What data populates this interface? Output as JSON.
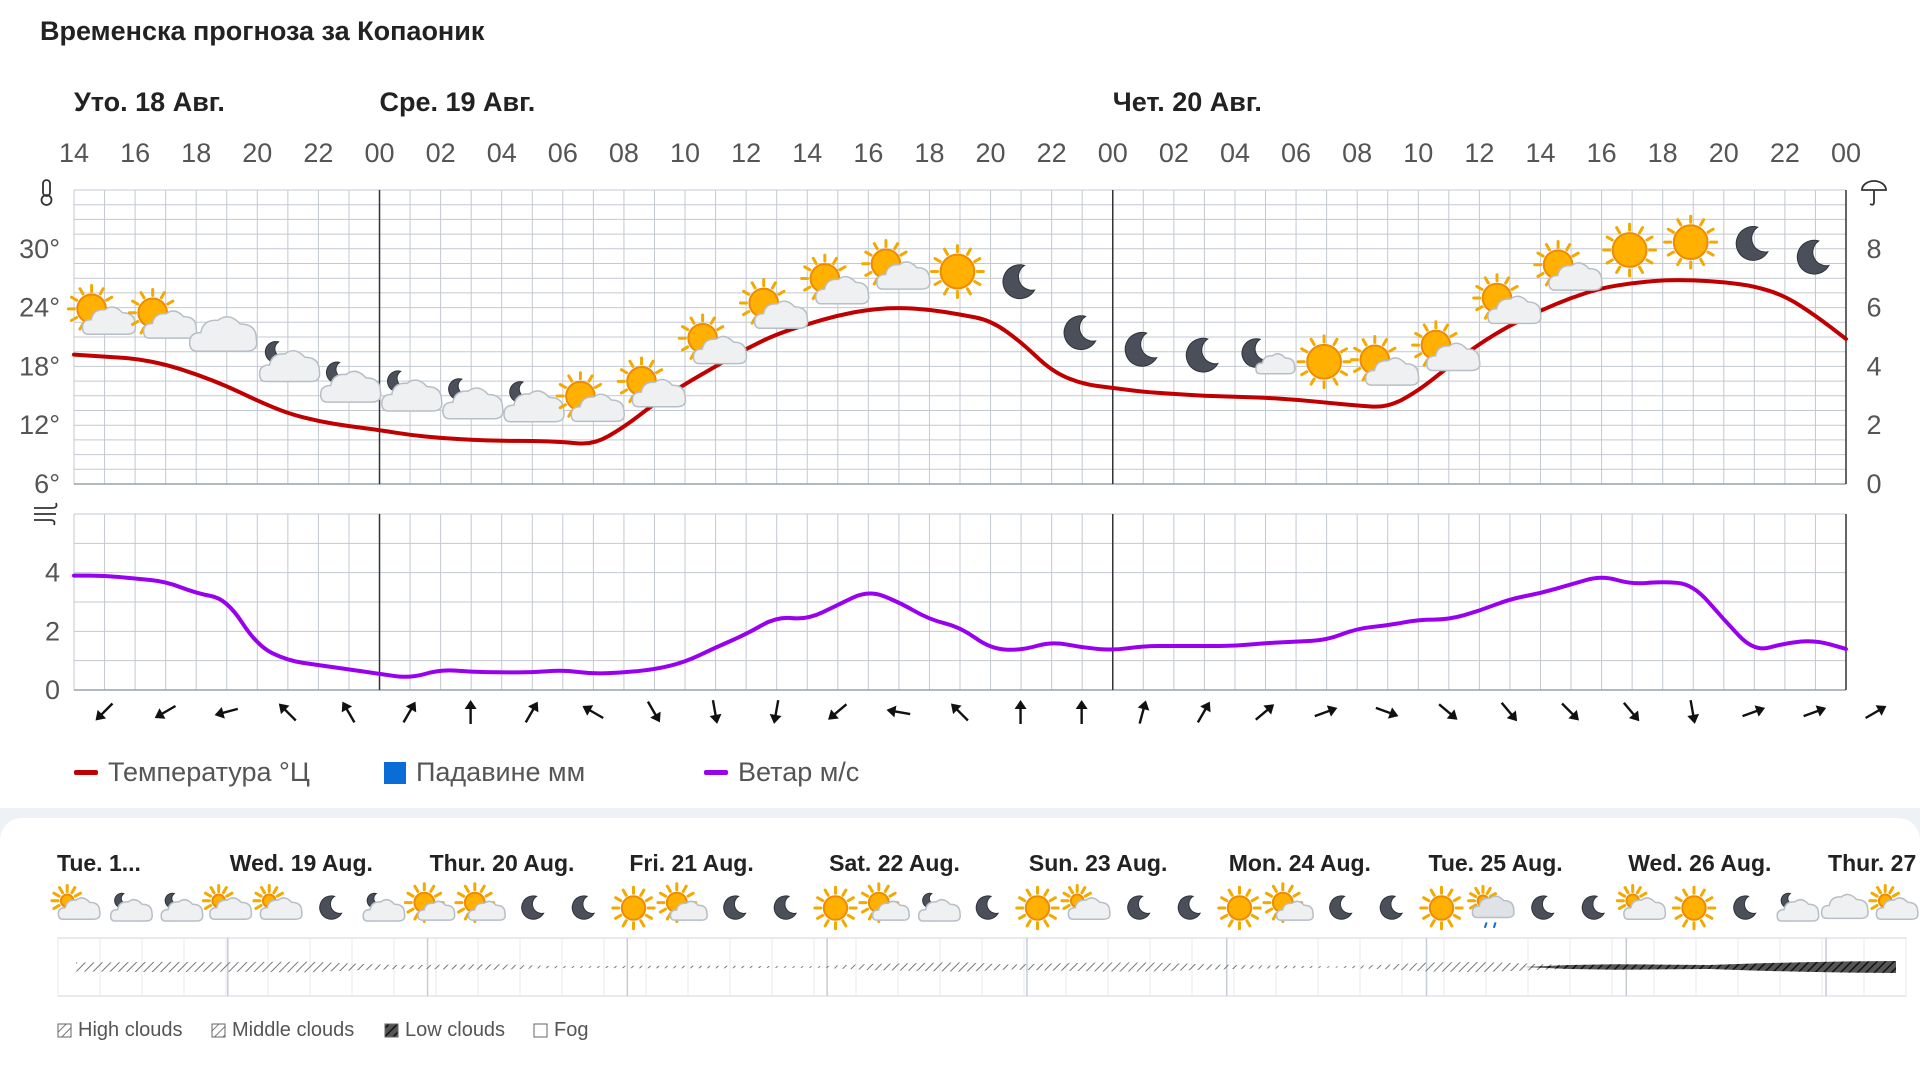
{
  "title": "Временска прогноза за Копаоник",
  "colors": {
    "temperature": "#c00000",
    "precipitation": "#0a6cd6",
    "wind": "#9900ee",
    "grid": "#c3c9d0",
    "day_separator": "#333333"
  },
  "legend": {
    "temperature": "Температура °Ц",
    "precipitation": "Падавине мм",
    "wind": "Ветар м/с"
  },
  "chart_data": [
    {
      "type": "line",
      "day_labels": [
        {
          "label": "Уто. 18 Авг.",
          "hour_index": 0
        },
        {
          "label": "Сре. 19 Авг.",
          "hour_index": 5
        },
        {
          "label": "Чет. 20 Авг.",
          "hour_index": 17
        }
      ],
      "x_ticks": [
        "14",
        "16",
        "18",
        "20",
        "22",
        "00",
        "02",
        "04",
        "06",
        "08",
        "10",
        "12",
        "14",
        "16",
        "18",
        "20",
        "22",
        "00",
        "02",
        "04",
        "06",
        "08",
        "10",
        "12",
        "14",
        "16",
        "18",
        "20",
        "22",
        "00"
      ],
      "y_left_ticks": [
        "6°",
        "12°",
        "18°",
        "24°",
        "30°"
      ],
      "y_right_ticks": [
        "0",
        "2",
        "4",
        "6",
        "8"
      ],
      "ylim_temperature": [
        6,
        36
      ],
      "ylim_precipitation": [
        0,
        10
      ],
      "x_hours_since_start": [
        0,
        1,
        2,
        3,
        4,
        5,
        6,
        7,
        8,
        9,
        10,
        11,
        12,
        13,
        14,
        15,
        16,
        17,
        18,
        19,
        20,
        21,
        22,
        23,
        24,
        25,
        26,
        27,
        28,
        29,
        30,
        31,
        32,
        33,
        34,
        35,
        36,
        37,
        38,
        39,
        40,
        41,
        42,
        43,
        44,
        45,
        46,
        47,
        48,
        49,
        50,
        51,
        52,
        53,
        54,
        55,
        56,
        57,
        58
      ],
      "series": [
        {
          "name": "Температура °Ц",
          "values": [
            19.2,
            19.0,
            18.8,
            18.2,
            17.2,
            16.0,
            14.5,
            13.2,
            12.4,
            11.9,
            11.5,
            11.0,
            10.7,
            10.5,
            10.4,
            10.4,
            10.3,
            10.0,
            11.8,
            14.2,
            16.2,
            18.0,
            19.8,
            21.3,
            22.3,
            23.2,
            23.8,
            24.0,
            23.8,
            23.3,
            22.7,
            20.5,
            17.5,
            16.2,
            15.8,
            15.4,
            15.2,
            15.0,
            14.9,
            14.8,
            14.6,
            14.3,
            14.0,
            13.8,
            15.5,
            18.0,
            20.3,
            22.2,
            23.7,
            25.0,
            26.0,
            26.5,
            26.8,
            26.8,
            26.6,
            26.2,
            25.2,
            23.2,
            20.8
          ]
        },
        {
          "name": "Ветар м/с",
          "values": [
            3.9,
            3.9,
            3.8,
            3.7,
            3.3,
            3.1,
            1.5,
            1.0,
            0.85,
            0.7,
            0.55,
            0.4,
            0.7,
            0.62,
            0.6,
            0.6,
            0.68,
            0.55,
            0.6,
            0.7,
            0.95,
            1.45,
            1.9,
            2.5,
            2.4,
            2.9,
            3.4,
            3.0,
            2.4,
            2.15,
            1.4,
            1.35,
            1.65,
            1.45,
            1.35,
            1.5,
            1.5,
            1.5,
            1.5,
            1.6,
            1.65,
            1.7,
            2.1,
            2.2,
            2.4,
            2.4,
            2.7,
            3.1,
            3.3,
            3.6,
            3.9,
            3.6,
            3.7,
            3.6,
            2.4,
            1.3,
            1.6,
            1.7,
            1.4
          ]
        }
      ],
      "wind_ylim": [
        0,
        6
      ],
      "wind_ticks": [
        "0",
        "2",
        "4"
      ],
      "weather_icons": [
        "partly-sunny",
        "partly-sunny",
        "cloudy",
        "cloudy-night",
        "cloudy-night",
        "cloudy-night",
        "cloudy-night",
        "cloudy-night",
        "partly-sunny",
        "partly-sunny",
        "partly-sunny",
        "partly-sunny",
        "partly-sunny",
        "partly-sunny",
        "sun",
        "moon",
        "moon",
        "moon",
        "moon",
        "moon-cloud",
        "sun",
        "partly-sunny",
        "partly-sunny",
        "partly-sunny",
        "partly-sunny",
        "sun",
        "sun",
        "moon",
        "moon"
      ],
      "wind_dirs_deg": [
        135,
        150,
        165,
        225,
        240,
        300,
        270,
        300,
        210,
        60,
        80,
        100,
        140,
        190,
        225,
        270,
        270,
        285,
        300,
        320,
        340,
        20,
        40,
        50,
        45,
        50,
        80,
        340,
        340,
        330
      ]
    },
    {
      "type": "area",
      "day_labels": [
        "Tue. 1...",
        "Wed. 19 Aug.",
        "Thur. 20 Aug.",
        "Fri. 21 Aug.",
        "Sat. 22 Aug.",
        "Sun. 23 Aug.",
        "Mon. 24 Aug.",
        "Tue. 25 Aug.",
        "Wed. 26 Aug.",
        "Thur. 27 Aug."
      ],
      "icons": [
        "partly-cloudy",
        "cloudy-night",
        "cloudy-night",
        "partly-cloudy",
        "partly-cloudy",
        "moon",
        "cloudy-night",
        "partly-sunny",
        "partly-sunny",
        "moon",
        "moon",
        "sun",
        "partly-sunny",
        "moon",
        "moon",
        "sun",
        "partly-sunny",
        "cloudy-night",
        "moon",
        "sun",
        "partly-cloudy",
        "moon",
        "moon",
        "sun",
        "partly-sunny",
        "moon",
        "moon",
        "sun",
        "rain-cloud",
        "moon",
        "moon",
        "partly-cloudy",
        "sun",
        "moon",
        "cloudy-night",
        "cloudy",
        "partly-cloudy"
      ],
      "cloud_levels": {
        "high_clouds": [
          0.75,
          0.8,
          0.85,
          0.8,
          0.85,
          0.9,
          0.55,
          0.3,
          0.4,
          0.45,
          0.2,
          0.15,
          0.2,
          0.2,
          0.2,
          0.15,
          0.15,
          0.5,
          0.65,
          0.8,
          0.4,
          0.6,
          0.75,
          0.75,
          0.5,
          0.3,
          0.2,
          0.1,
          0.35,
          0.75,
          0.85,
          0.6,
          0.3,
          0.15,
          0.1,
          0.1,
          0.1,
          0.1,
          0.1,
          0.1
        ],
        "low_clouds": [
          0,
          0,
          0,
          0,
          0,
          0,
          0,
          0,
          0,
          0,
          0,
          0,
          0,
          0,
          0,
          0,
          0,
          0,
          0,
          0,
          0,
          0,
          0,
          0,
          0,
          0,
          0,
          0,
          0,
          0,
          0,
          0,
          0.25,
          0.35,
          0.3,
          0.25,
          0.45,
          0.6,
          0.7,
          0.75
        ]
      },
      "legend": [
        "High clouds",
        "Middle clouds",
        "Low clouds",
        "Fog"
      ]
    }
  ]
}
